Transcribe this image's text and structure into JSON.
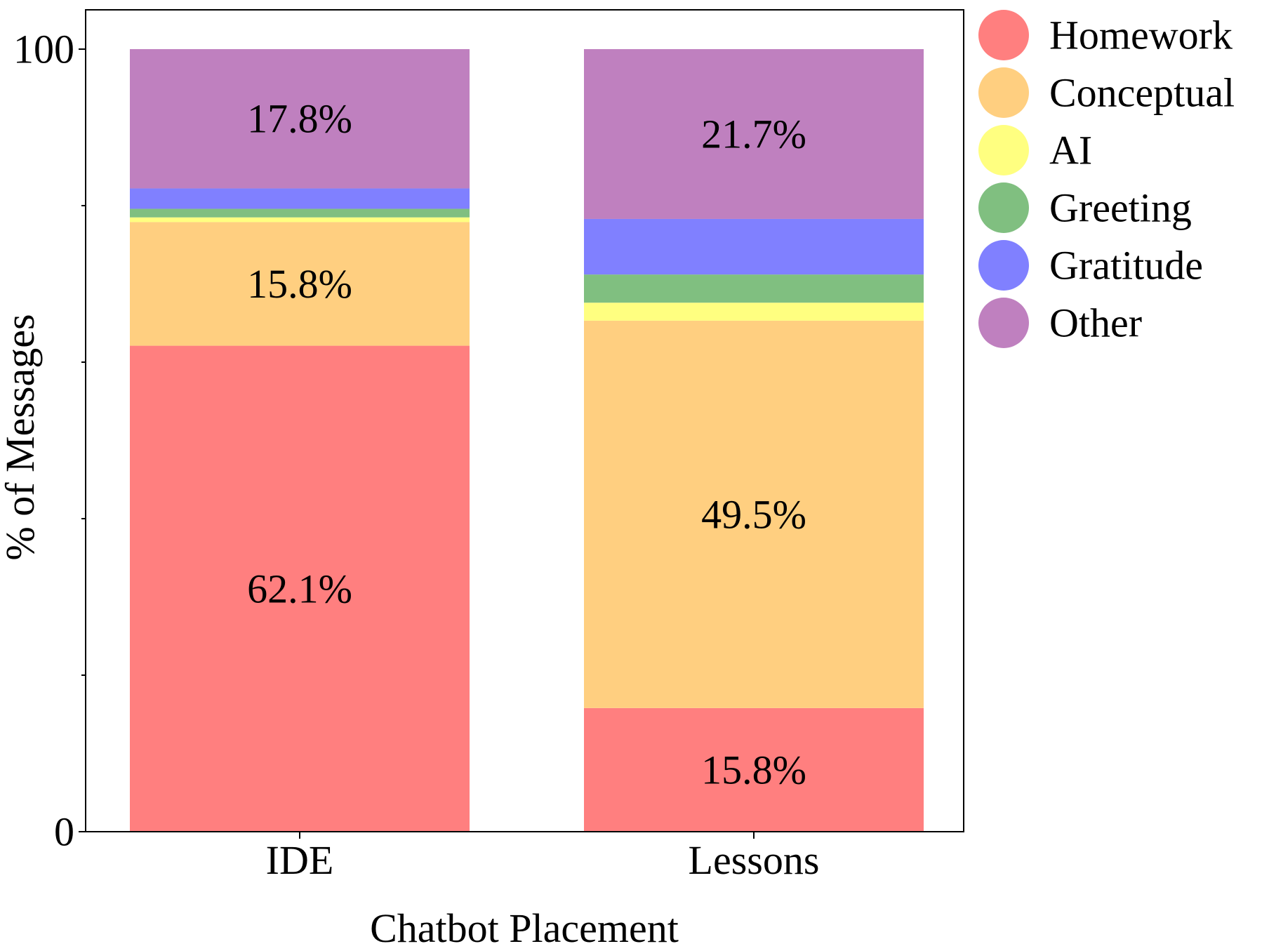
{
  "chart_data": {
    "type": "bar",
    "stacked": true,
    "title": "",
    "xlabel": "Chatbot Placement",
    "ylabel": "% of Messages",
    "ylim": [
      0,
      100
    ],
    "y_ticks_major": [
      0,
      100
    ],
    "y_ticks_minor": [
      20,
      40,
      60,
      80
    ],
    "grid": false,
    "legend_position": "outside-right-top",
    "categories": [
      "IDE",
      "Lessons"
    ],
    "series": [
      {
        "name": "Homework",
        "color": "#ff7f7f",
        "values": [
          62.1,
          15.8
        ]
      },
      {
        "name": "Conceptual",
        "color": "#ffcf80",
        "values": [
          15.8,
          49.5
        ]
      },
      {
        "name": "AI",
        "color": "#ffff80",
        "values": [
          0.6,
          2.3
        ]
      },
      {
        "name": "Greeting",
        "color": "#80bf80",
        "values": [
          1.1,
          3.6
        ]
      },
      {
        "name": "Gratitude",
        "color": "#8080ff",
        "values": [
          2.6,
          7.1
        ]
      },
      {
        "name": "Other",
        "color": "#bf80bf",
        "values": [
          17.8,
          21.7
        ]
      }
    ],
    "data_labels": [
      {
        "category": "IDE",
        "series": "Homework",
        "text": "62.1%"
      },
      {
        "category": "IDE",
        "series": "Conceptual",
        "text": "15.8%"
      },
      {
        "category": "IDE",
        "series": "Other",
        "text": "17.8%"
      },
      {
        "category": "Lessons",
        "series": "Homework",
        "text": "15.8%"
      },
      {
        "category": "Lessons",
        "series": "Conceptual",
        "text": "49.5%"
      },
      {
        "category": "Lessons",
        "series": "Other",
        "text": "21.7%"
      }
    ],
    "y_tick_labels": [
      "0",
      "100"
    ]
  }
}
